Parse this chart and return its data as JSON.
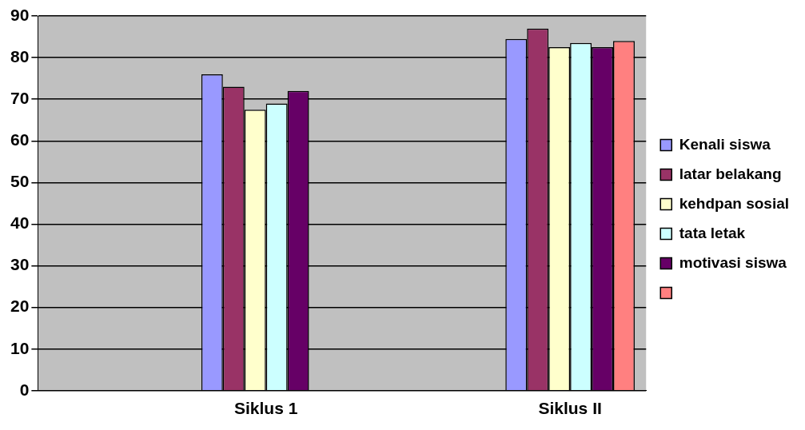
{
  "chart_data": {
    "type": "bar",
    "categories": [
      null,
      "Siklus 1",
      null,
      "Siklus II"
    ],
    "series": [
      {
        "name": "Kenali siswa",
        "color": "#9999ff",
        "values": [
          null,
          76,
          null,
          84.5
        ]
      },
      {
        "name": "latar belakang",
        "color": "#993366",
        "values": [
          null,
          73,
          null,
          87
        ]
      },
      {
        "name": "kehdpan sosial",
        "color": "#ffffcc",
        "values": [
          null,
          67.5,
          null,
          82.5
        ]
      },
      {
        "name": "tata letak",
        "color": "#ccffff",
        "values": [
          null,
          69,
          null,
          83.5
        ]
      },
      {
        "name": "motivasi siswa",
        "color": "#660066",
        "values": [
          null,
          72,
          null,
          82.5
        ]
      },
      {
        "color": "#ff8080",
        "values": [
          null,
          null,
          null,
          84
        ]
      }
    ],
    "ylim": [
      0,
      90
    ],
    "yticks": [
      0,
      10,
      20,
      30,
      40,
      50,
      60,
      70,
      80,
      90
    ],
    "grid": "y",
    "legend": "right"
  }
}
